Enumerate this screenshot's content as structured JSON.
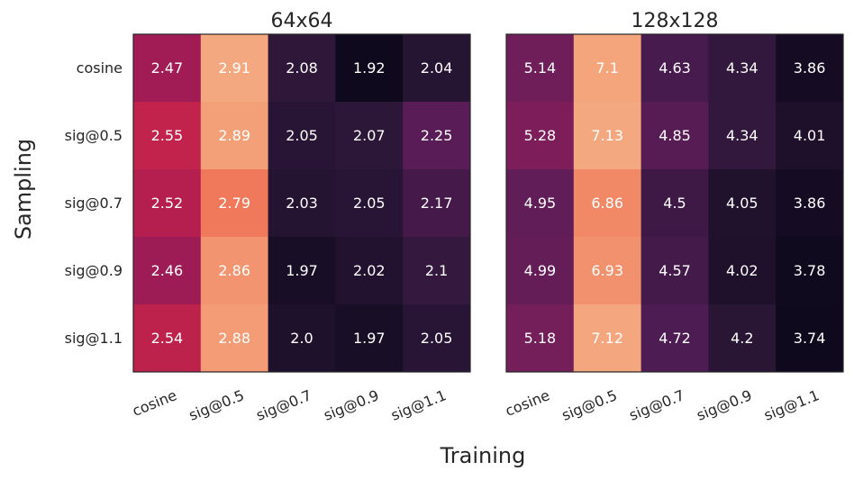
{
  "chart_data": [
    {
      "type": "heatmap",
      "title": "64x64",
      "xlabel": "Training",
      "ylabel": "Sampling",
      "x_categories": [
        "cosine",
        "sig@0.5",
        "sig@0.7",
        "sig@0.9",
        "sig@1.1"
      ],
      "y_categories": [
        "cosine",
        "sig@0.5",
        "sig@0.7",
        "sig@0.9",
        "sig@1.1"
      ],
      "values": [
        [
          "2.47",
          "2.91",
          "2.08",
          "1.92",
          "2.04"
        ],
        [
          "2.55",
          "2.89",
          "2.05",
          "2.07",
          "2.25"
        ],
        [
          "2.52",
          "2.79",
          "2.03",
          "2.05",
          "2.17"
        ],
        [
          "2.46",
          "2.86",
          "1.97",
          "2.02",
          "2.1"
        ],
        [
          "2.54",
          "2.88",
          "2.0",
          "1.97",
          "2.05"
        ]
      ],
      "colormap": "rocket"
    },
    {
      "type": "heatmap",
      "title": "128x128",
      "x_categories": [
        "cosine",
        "sig@0.5",
        "sig@0.7",
        "sig@0.9",
        "sig@1.1"
      ],
      "y_categories": [
        "cosine",
        "sig@0.5",
        "sig@0.7",
        "sig@0.9",
        "sig@1.1"
      ],
      "values": [
        [
          "5.14",
          "7.1",
          "4.63",
          "4.34",
          "3.86"
        ],
        [
          "5.28",
          "7.13",
          "4.85",
          "4.34",
          "4.01"
        ],
        [
          "4.95",
          "6.86",
          "4.5",
          "4.05",
          "3.86"
        ],
        [
          "4.99",
          "6.93",
          "4.57",
          "4.02",
          "3.78"
        ],
        [
          "5.18",
          "7.12",
          "4.72",
          "4.2",
          "3.74"
        ]
      ],
      "colormap": "rocket"
    }
  ]
}
